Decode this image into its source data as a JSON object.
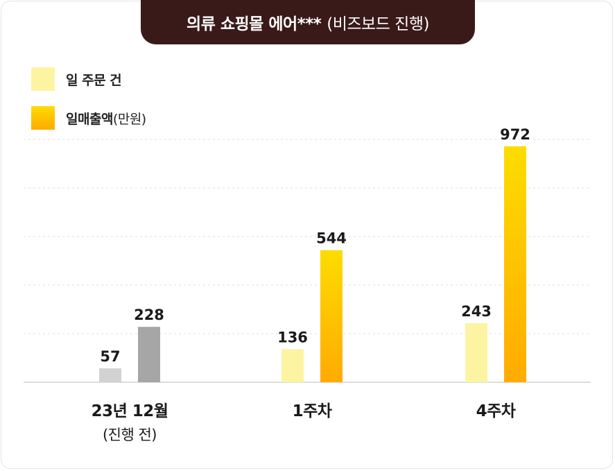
{
  "header": {
    "title_main": "의류 쇼핑몰 에어***",
    "title_sub": "(비즈보드 진행)"
  },
  "legend": {
    "orders_label": "일 주문 건",
    "sales_label": "일매출액",
    "sales_unit": "(만원)"
  },
  "colors": {
    "header_bg": "#3a1a19",
    "orders": "#fdf4a2",
    "sales_top": "#fddc00",
    "sales_bottom": "#ffab00",
    "before_orders": "#d2d2d2",
    "before_sales": "#a6a6a6"
  },
  "chart_data": {
    "type": "bar",
    "categories": [
      "23년 12월",
      "1주차",
      "4주차"
    ],
    "category_sublabels": [
      "(진행 전)",
      "",
      ""
    ],
    "series": [
      {
        "name": "일 주문 건",
        "values": [
          57,
          136,
          243
        ]
      },
      {
        "name": "일매출액(만원)",
        "values": [
          228,
          544,
          972
        ]
      }
    ],
    "ylim": [
      0,
      1100
    ],
    "grid": true,
    "legend_position": "top-left"
  }
}
